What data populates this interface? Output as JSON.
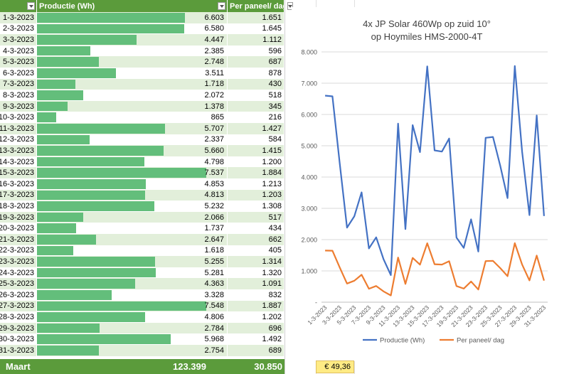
{
  "table": {
    "headers": [
      "Productie (Wh)",
      "Per paneel/ dag"
    ],
    "rows": [
      [
        "1-3-2023",
        "6.603",
        "1.651"
      ],
      [
        "2-3-2023",
        "6.580",
        "1.645"
      ],
      [
        "3-3-2023",
        "4.447",
        "1.112"
      ],
      [
        "4-3-2023",
        "2.385",
        "596"
      ],
      [
        "5-3-2023",
        "2.748",
        "687"
      ],
      [
        "6-3-2023",
        "3.511",
        "878"
      ],
      [
        "7-3-2023",
        "1.718",
        "430"
      ],
      [
        "8-3-2023",
        "2.072",
        "518"
      ],
      [
        "9-3-2023",
        "1.378",
        "345"
      ],
      [
        "10-3-2023",
        "865",
        "216"
      ],
      [
        "11-3-2023",
        "5.707",
        "1.427"
      ],
      [
        "12-3-2023",
        "2.337",
        "584"
      ],
      [
        "13-3-2023",
        "5.660",
        "1.415"
      ],
      [
        "14-3-2023",
        "4.798",
        "1.200"
      ],
      [
        "15-3-2023",
        "7.537",
        "1.884"
      ],
      [
        "16-3-2023",
        "4.853",
        "1.213"
      ],
      [
        "17-3-2023",
        "4.813",
        "1.203"
      ],
      [
        "18-3-2023",
        "5.232",
        "1.308"
      ],
      [
        "19-3-2023",
        "2.066",
        "517"
      ],
      [
        "20-3-2023",
        "1.737",
        "434"
      ],
      [
        "21-3-2023",
        "2.647",
        "662"
      ],
      [
        "22-3-2023",
        "1.618",
        "405"
      ],
      [
        "23-3-2023",
        "5.255",
        "1.314"
      ],
      [
        "24-3-2023",
        "5.281",
        "1.320"
      ],
      [
        "25-3-2023",
        "4.363",
        "1.091"
      ],
      [
        "26-3-2023",
        "3.328",
        "832"
      ],
      [
        "27-3-2023",
        "7.548",
        "1.887"
      ],
      [
        "28-3-2023",
        "4.806",
        "1.202"
      ],
      [
        "29-3-2023",
        "2.784",
        "696"
      ],
      [
        "30-3-2023",
        "5.968",
        "1.492"
      ],
      [
        "31-3-2023",
        "2.754",
        "689"
      ]
    ],
    "total": {
      "label": "Maart",
      "production": "123.399",
      "per_panel": "30.850"
    }
  },
  "euro_cell": "€ 49,36",
  "colors": {
    "header": "#5b9b3b",
    "databar": "#63be7b",
    "series1": "#4472c4",
    "series2": "#ed7d31",
    "highlight": "#ffeb84"
  },
  "chart_data": {
    "type": "line",
    "title": "4x JP Solar 460Wp op zuid 10° op Hoymiles HMS-2000-4T",
    "title_lines": [
      "4x JP Solar 460Wp op zuid 10°",
      "op Hoymiles HMS-2000-4T"
    ],
    "x": [
      "1-3-2023",
      "2-3-2023",
      "3-3-2023",
      "4-3-2023",
      "5-3-2023",
      "6-3-2023",
      "7-3-2023",
      "8-3-2023",
      "9-3-2023",
      "10-3-2023",
      "11-3-2023",
      "12-3-2023",
      "13-3-2023",
      "14-3-2023",
      "15-3-2023",
      "16-3-2023",
      "17-3-2023",
      "18-3-2023",
      "19-3-2023",
      "20-3-2023",
      "21-3-2023",
      "22-3-2023",
      "23-3-2023",
      "24-3-2023",
      "25-3-2023",
      "26-3-2023",
      "27-3-2023",
      "28-3-2023",
      "29-3-2023",
      "30-3-2023",
      "31-3-2023"
    ],
    "x_tick_labels": [
      "1-3-2023",
      "3-3-2023",
      "5-3-2023",
      "7-3-2023",
      "9-3-2023",
      "11-3-2023",
      "13-3-2023",
      "15-3-2023",
      "17-3-2023",
      "19-3-2023",
      "21-3-2023",
      "23-3-2023",
      "25-3-2023",
      "27-3-2023",
      "29-3-2023",
      "31-3-2023"
    ],
    "y_tick_labels": [
      "-",
      "1.000",
      "2.000",
      "3.000",
      "4.000",
      "5.000",
      "6.000",
      "7.000",
      "8.000"
    ],
    "ylim": [
      0,
      8000
    ],
    "grid": true,
    "legend": "bottom",
    "series": [
      {
        "name": "Productie (Wh)",
        "values": [
          6603,
          6580,
          4447,
          2385,
          2748,
          3511,
          1718,
          2072,
          1378,
          865,
          5707,
          2337,
          5660,
          4798,
          7537,
          4853,
          4813,
          5232,
          2066,
          1737,
          2647,
          1618,
          5255,
          5281,
          4363,
          3328,
          7548,
          4806,
          2784,
          5968,
          2754
        ]
      },
      {
        "name": "Per paneel/ dag",
        "values": [
          1651,
          1645,
          1112,
          596,
          687,
          878,
          430,
          518,
          345,
          216,
          1427,
          584,
          1415,
          1200,
          1884,
          1213,
          1203,
          1308,
          517,
          434,
          662,
          405,
          1314,
          1320,
          1091,
          832,
          1887,
          1202,
          696,
          1492,
          689
        ]
      }
    ]
  }
}
